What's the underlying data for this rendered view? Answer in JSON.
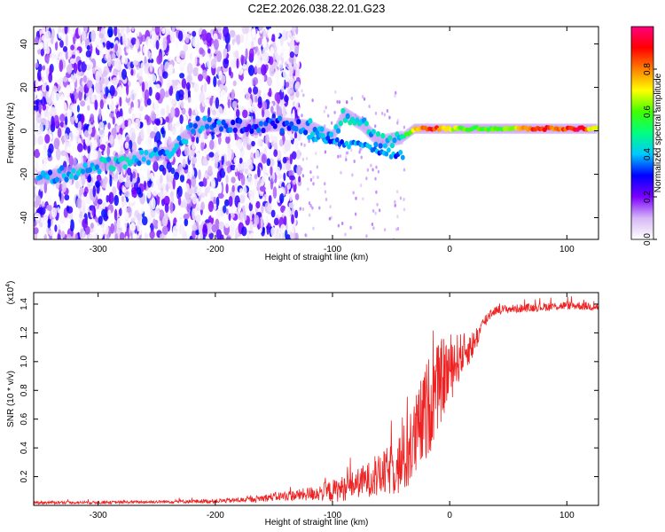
{
  "title": "C2E2.2026.038.22.01.G23",
  "chart_data": [
    {
      "type": "heatmap",
      "title": "C2E2.2026.038.22.01.G23",
      "xlabel": "Height of straight line (km)",
      "ylabel": "Frequency (Hz)",
      "xlim": [
        -355,
        127
      ],
      "ylim": [
        -50,
        48
      ],
      "x_ticks": [
        -300,
        -200,
        -100,
        0,
        100
      ],
      "y_ticks": [
        -40,
        -20,
        0,
        20,
        40
      ],
      "x_tick_labels": [
        "-300",
        "-200",
        "-100",
        "0",
        "100"
      ],
      "y_tick_labels": [
        "-40",
        "-20",
        "0",
        "20",
        "40"
      ],
      "colorbar": {
        "label": "Normalized spectral amplitude",
        "range": [
          0,
          1
        ],
        "ticks": [
          0.0,
          0.2,
          0.4,
          0.6,
          0.8
        ],
        "tick_labels": [
          "0.0",
          "0.2",
          "0.4",
          "0.6",
          "0.8"
        ],
        "colors": [
          "#ffffff",
          "#d6b8f5",
          "#7b00ff",
          "#0000ff",
          "#00c8ff",
          "#00ff80",
          "#40ff00",
          "#ffff00",
          "#ff8000",
          "#ff0000",
          "#ff0080"
        ]
      },
      "ridge": [
        {
          "x": -352,
          "y": -22,
          "a": 0.35
        },
        {
          "x": -330,
          "y": -20,
          "a": 0.38
        },
        {
          "x": -300,
          "y": -16,
          "a": 0.42
        },
        {
          "x": -270,
          "y": -13,
          "a": 0.4
        },
        {
          "x": -240,
          "y": -10,
          "a": 0.36
        },
        {
          "x": -215,
          "y": 3,
          "a": 0.38
        },
        {
          "x": -180,
          "y": 2,
          "a": 0.3
        },
        {
          "x": -140,
          "y": 3,
          "a": 0.32
        },
        {
          "x": -120,
          "y": 2,
          "a": 0.38
        },
        {
          "x": -100,
          "y": -3,
          "a": 0.4
        },
        {
          "x": -90,
          "y": 8,
          "a": 0.42
        },
        {
          "x": -75,
          "y": 3,
          "a": 0.42
        },
        {
          "x": -60,
          "y": -5,
          "a": 0.4
        },
        {
          "x": -40,
          "y": -3,
          "a": 0.45
        },
        {
          "x": -30,
          "y": 1,
          "a": 0.75
        },
        {
          "x": -15,
          "y": 1,
          "a": 0.9
        },
        {
          "x": 0,
          "y": 1,
          "a": 0.65
        },
        {
          "x": 20,
          "y": 1,
          "a": 0.6
        },
        {
          "x": 50,
          "y": 1,
          "a": 0.6
        },
        {
          "x": 75,
          "y": 1,
          "a": 0.9
        },
        {
          "x": 95,
          "y": 1,
          "a": 0.8
        },
        {
          "x": 110,
          "y": 1,
          "a": 0.95
        },
        {
          "x": 125,
          "y": 1,
          "a": 0.65
        }
      ]
    },
    {
      "type": "line",
      "xlabel": "Height of straight line (km)",
      "ylabel": "SNR (10 * v/v)",
      "y_multiplier": "(x10^4)",
      "xlim": [
        -355,
        127
      ],
      "ylim": [
        0,
        1.48
      ],
      "x_ticks": [
        -300,
        -200,
        -100,
        0,
        100
      ],
      "y_ticks": [
        0.2,
        0.4,
        0.6,
        0.8,
        1.0,
        1.2,
        1.4
      ],
      "x_tick_labels": [
        "-300",
        "-200",
        "-100",
        "0",
        "100"
      ],
      "y_tick_labels": [
        "0.2",
        "0.4",
        "0.6",
        "0.8",
        "1.0",
        "1.2",
        "1.4"
      ],
      "line_color": "#ee2222",
      "series": [
        {
          "name": "SNR",
          "x": [
            -355,
            -300,
            -250,
            -200,
            -170,
            -150,
            -130,
            -120,
            -110,
            -100,
            -90,
            -80,
            -70,
            -60,
            -50,
            -40,
            -30,
            -25,
            -20,
            -15,
            -10,
            -5,
            0,
            5,
            10,
            15,
            20,
            25,
            30,
            35,
            40,
            60,
            80,
            100,
            110,
            127
          ],
          "mean": [
            0.02,
            0.02,
            0.025,
            0.03,
            0.04,
            0.06,
            0.07,
            0.08,
            0.09,
            0.1,
            0.12,
            0.15,
            0.18,
            0.2,
            0.25,
            0.3,
            0.45,
            0.55,
            0.65,
            0.75,
            0.82,
            0.9,
            0.95,
            1.0,
            1.05,
            1.08,
            1.12,
            1.2,
            1.28,
            1.34,
            1.36,
            1.37,
            1.38,
            1.39,
            1.39,
            1.38
          ],
          "noise": [
            0.01,
            0.01,
            0.01,
            0.015,
            0.02,
            0.03,
            0.04,
            0.05,
            0.06,
            0.08,
            0.09,
            0.1,
            0.12,
            0.15,
            0.18,
            0.25,
            0.3,
            0.32,
            0.35,
            0.35,
            0.3,
            0.28,
            0.25,
            0.2,
            0.15,
            0.12,
            0.1,
            0.07,
            0.05,
            0.04,
            0.03,
            0.03,
            0.03,
            0.03,
            0.03,
            0.03
          ]
        }
      ]
    }
  ]
}
